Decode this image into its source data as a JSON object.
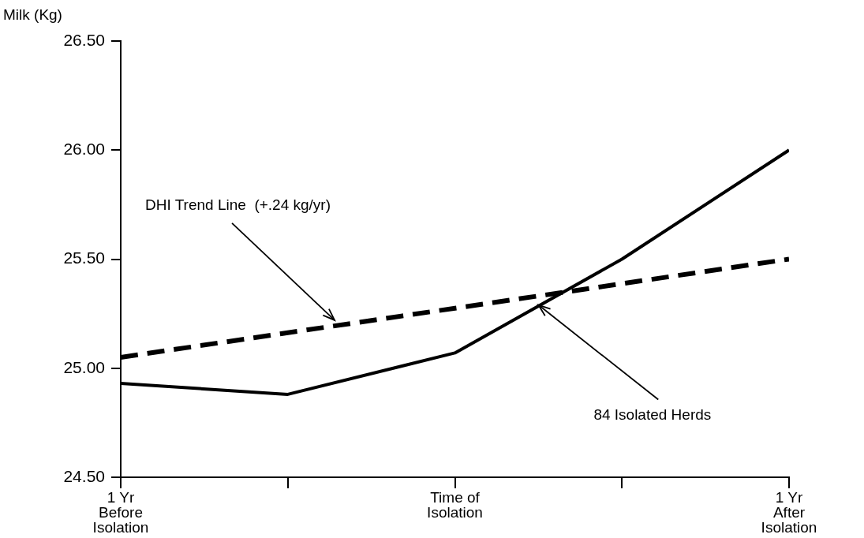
{
  "chart_data": {
    "type": "line",
    "ylabel": "Milk (Kg)",
    "x": [
      -1,
      -0.5,
      0,
      0.5,
      1
    ],
    "series": [
      {
        "color": "#000000",
        "values": [
          24.93,
          24.88,
          25.07,
          25.5,
          26.0
        ],
        "line_style": "solid"
      },
      {
        "color": "#000000",
        "type": "line",
        "x": [
          -1,
          1
        ],
        "values": [
          25.05,
          25.5
        ],
        "line_style": "dashed"
      }
    ],
    "xlim": [
      -1,
      1
    ],
    "xticks": [
      {
        "value": -1,
        "label": "1 Yr\nBefore\nIsolation"
      },
      {
        "value": -0.5,
        "label": null
      },
      {
        "value": 0,
        "label": "Time of\nIsolation"
      },
      {
        "value": 0.5,
        "label": null
      },
      {
        "value": 1,
        "label": "1 Yr\nAfter\nIsolation"
      }
    ],
    "ylim": [
      24.5,
      26.5
    ],
    "yticks": [
      {
        "value": 24.5,
        "label": "24.50"
      },
      {
        "value": 25,
        "label": "25.00"
      },
      {
        "value": 25.5,
        "label": "25.50"
      },
      {
        "value": 26,
        "label": "26.00"
      },
      {
        "value": 26.5,
        "label": "26.50"
      }
    ],
    "grid": false,
    "legend": false,
    "marker": "none",
    "annotations": [
      {
        "text": "DHI Trend Line  (+.24 kg/yr)",
        "x": -0.36,
        "y": 25.22
      },
      {
        "text": "84 Isolated Herds",
        "x": 0.25,
        "y": 25.29
      }
    ]
  }
}
